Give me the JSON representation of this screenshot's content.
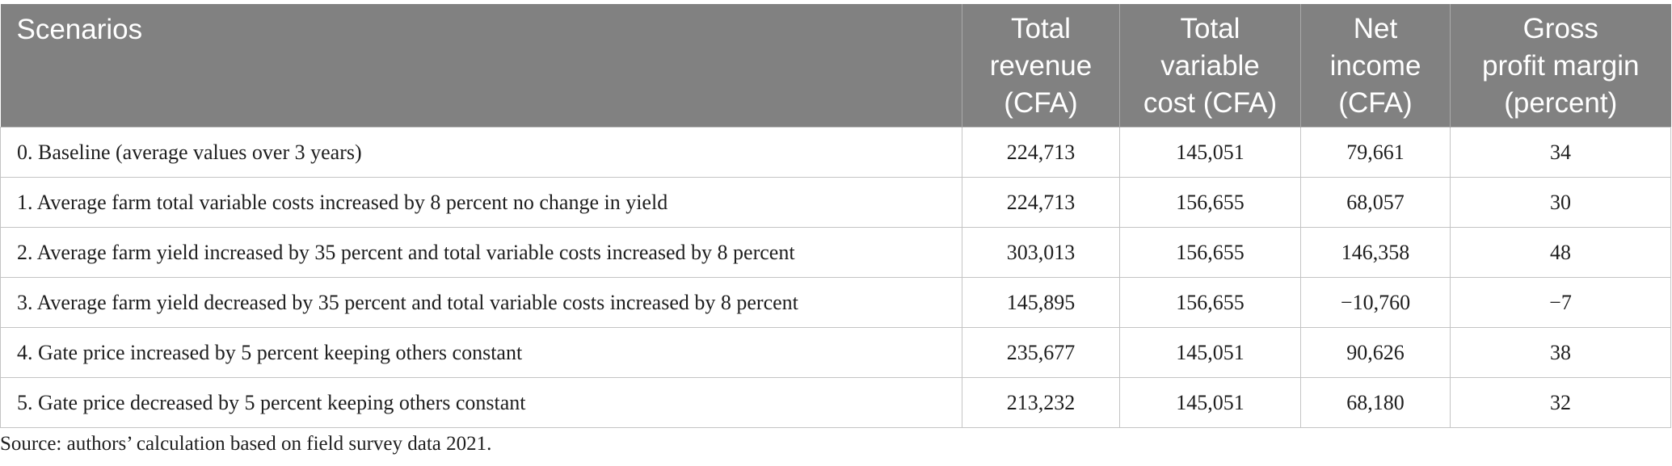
{
  "table": {
    "headers": {
      "scenarios": [
        "Scenarios"
      ],
      "total_revenue": [
        "Total",
        "revenue",
        "(CFA)"
      ],
      "total_variable_cost": [
        "Total",
        "variable",
        "cost (CFA)"
      ],
      "net_income": [
        "Net",
        "income",
        "(CFA)"
      ],
      "gross_profit_margin": [
        "Gross",
        "profit margin",
        "(percent)"
      ]
    },
    "rows": [
      {
        "scenario": "0. Baseline (average values over 3 years)",
        "total_revenue": "224,713",
        "total_variable_cost": "145,051",
        "net_income": "79,661",
        "gross_profit_margin": "34"
      },
      {
        "scenario": "1. Average farm total variable costs increased by 8 percent no change in yield",
        "total_revenue": "224,713",
        "total_variable_cost": "156,655",
        "net_income": "68,057",
        "gross_profit_margin": "30"
      },
      {
        "scenario": "2. Average farm yield increased by 35 percent and total variable costs increased by 8 percent",
        "total_revenue": "303,013",
        "total_variable_cost": "156,655",
        "net_income": "146,358",
        "gross_profit_margin": "48"
      },
      {
        "scenario": "3. Average farm yield decreased by 35 percent and total variable costs increased by 8 percent",
        "total_revenue": "145,895",
        "total_variable_cost": "156,655",
        "net_income": "−10,760",
        "gross_profit_margin": "−7"
      },
      {
        "scenario": "4. Gate price increased by 5 percent keeping others constant",
        "total_revenue": "235,677",
        "total_variable_cost": "145,051",
        "net_income": "90,626",
        "gross_profit_margin": "38"
      },
      {
        "scenario": "5. Gate price decreased by 5 percent keeping others constant",
        "total_revenue": "213,232",
        "total_variable_cost": "145,051",
        "net_income": "68,180",
        "gross_profit_margin": "32"
      }
    ]
  },
  "source_note": "Source: authors’ calculation based on field survey data 2021.",
  "colors": {
    "header_background": "#818181",
    "header_text": "#ffffff",
    "body_text": "#1e1e1e",
    "grid_lines": "#c4c4c4"
  }
}
